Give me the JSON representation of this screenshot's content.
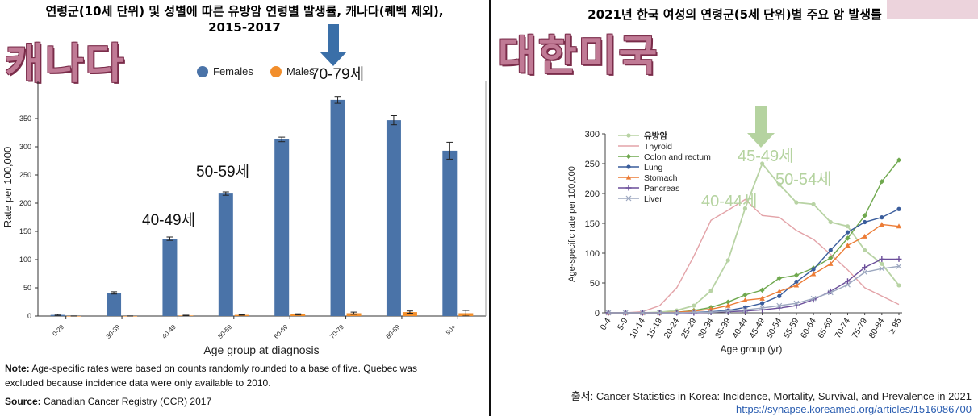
{
  "left": {
    "title_line1": "연령군(10세 단위) 및 성별에 따른 유방암 연령별 발생률, 캐나다(퀘벡 제외),",
    "title_line2": "2015-2017",
    "big_label": "캐나다",
    "note_label": "Note:",
    "note_text": "Age-specific rates were based on counts randomly rounded to a base of five. Quebec was excluded because incidence data were only available to 2010.",
    "source_label": "Source:",
    "source_text": "Canadian Cancer Registry (CCR) 2017",
    "annotations": [
      "40-49세",
      "50-59세",
      "70-79세"
    ],
    "arrow_color": "#3a6fa8"
  },
  "right": {
    "title": "2021년 한국 여성의 연령군(5세 단위)별 주요 암 발생률",
    "big_label": "대한미국",
    "annotations": [
      "40-44세",
      "45-49세",
      "50-54세"
    ],
    "arrow_color": "#b5d3a0",
    "source_prefix": "출서:",
    "source_text": "Cancer Statistics in Korea: Incidence, Mortality, Survival, and Prevalence in 2021",
    "source_url": "https://synapse.koreamed.org/articles/1516086700"
  },
  "chart_data": [
    {
      "type": "bar",
      "xlabel": "Age group at diagnosis",
      "ylabel": "Rate per 100,000",
      "ylim": [
        0,
        400
      ],
      "yticks": [
        0,
        50,
        100,
        150,
        200,
        250,
        300,
        350
      ],
      "categories": [
        "0-29",
        "30-39",
        "40-49",
        "50-59",
        "60-69",
        "70-79",
        "80-89",
        "90+"
      ],
      "legend_placement": "top-center",
      "series": [
        {
          "name": "Females",
          "color": "#4a73a8",
          "values": [
            2,
            41,
            137,
            217,
            313,
            383,
            347,
            293
          ],
          "err": [
            1,
            2,
            3,
            3,
            4,
            6,
            8,
            15
          ]
        },
        {
          "name": "Males",
          "color": "#f28e2b",
          "values": [
            0,
            0,
            1,
            2,
            3,
            5,
            7,
            5
          ],
          "err": [
            0.3,
            0.3,
            0.5,
            0.5,
            1,
            2,
            2,
            5
          ]
        }
      ]
    },
    {
      "type": "line",
      "xlabel": "Age group (yr)",
      "ylabel": "Age-specific rate per 100,000",
      "ylim": [
        0,
        300
      ],
      "yticks": [
        0,
        50,
        100,
        150,
        200,
        250,
        300
      ],
      "categories": [
        "0-4",
        "5-9",
        "10-14",
        "15-19",
        "20-24",
        "25-29",
        "30-34",
        "35-39",
        "40-44",
        "45-49",
        "50-54",
        "55-59",
        "60-64",
        "65-69",
        "70-74",
        "75-79",
        "80-84",
        "≥ 85"
      ],
      "legend_placement": "top-left",
      "series": [
        {
          "name": "유방암",
          "color": "#b8d3a4",
          "marker": "circle",
          "values": [
            0,
            0,
            0,
            1,
            4,
            12,
            37,
            88,
            175,
            250,
            215,
            185,
            182,
            152,
            145,
            105,
            82,
            46
          ]
        },
        {
          "name": "Thyroid",
          "color": "#e3a3a8",
          "marker": "none",
          "values": [
            0,
            0,
            2,
            12,
            42,
            95,
            155,
            172,
            190,
            163,
            160,
            138,
            123,
            98,
            72,
            42,
            28,
            14
          ]
        },
        {
          "name": "Colon and rectum",
          "color": "#6fa84e",
          "marker": "diamond",
          "values": [
            0,
            0,
            0,
            0,
            1,
            4,
            9,
            18,
            30,
            38,
            58,
            63,
            75,
            92,
            125,
            163,
            220,
            256
          ]
        },
        {
          "name": "Lung",
          "color": "#3a5d9c",
          "marker": "circle",
          "values": [
            0,
            0,
            0,
            0,
            0,
            1,
            2,
            4,
            9,
            16,
            28,
            52,
            73,
            105,
            135,
            152,
            160,
            174
          ]
        },
        {
          "name": "Stomach",
          "color": "#ec7c36",
          "marker": "triangle",
          "values": [
            0,
            0,
            0,
            0,
            1,
            3,
            6,
            12,
            21,
            24,
            36,
            46,
            65,
            82,
            113,
            128,
            148,
            145
          ]
        },
        {
          "name": "Pancreas",
          "color": "#6b4e9a",
          "marker": "plus",
          "values": [
            0,
            0,
            0,
            0,
            0,
            0,
            1,
            2,
            3,
            5,
            8,
            12,
            22,
            36,
            53,
            76,
            90,
            90
          ]
        },
        {
          "name": "Liver",
          "color": "#9da8c0",
          "marker": "cross",
          "values": [
            0,
            0,
            0,
            0,
            0,
            1,
            1,
            3,
            5,
            8,
            12,
            16,
            24,
            34,
            47,
            68,
            74,
            78
          ]
        }
      ]
    }
  ]
}
